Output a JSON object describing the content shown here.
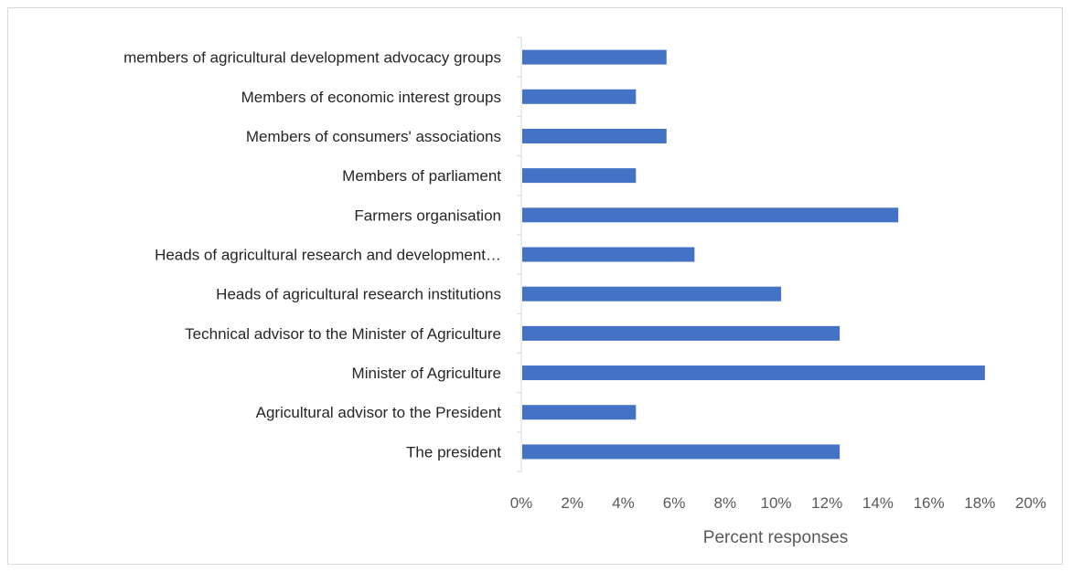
{
  "chart_data": {
    "type": "bar",
    "orientation": "horizontal",
    "categories": [
      "members of agricultural development advocacy groups",
      "Members of economic interest groups",
      "Members of consumers' associations",
      "Members of parliament",
      "Farmers organisation",
      "Heads of agricultural research and development…",
      "Heads of agricultural research institutions",
      "Technical advisor to the Minister of Agriculture",
      "Minister of Agriculture",
      "Agricultural advisor to the President",
      "The president"
    ],
    "values": [
      5.7,
      4.5,
      5.7,
      4.5,
      14.8,
      6.8,
      10.2,
      12.5,
      18.2,
      4.5,
      12.5
    ],
    "xlabel": "Percent responses",
    "ylabel": "",
    "title": "",
    "xlim": [
      0,
      20
    ],
    "xticks": [
      "0%",
      "2%",
      "4%",
      "6%",
      "8%",
      "10%",
      "12%",
      "14%",
      "16%",
      "18%",
      "20%"
    ],
    "grid": false,
    "legend": "none",
    "bar_color": "#4472C4"
  }
}
